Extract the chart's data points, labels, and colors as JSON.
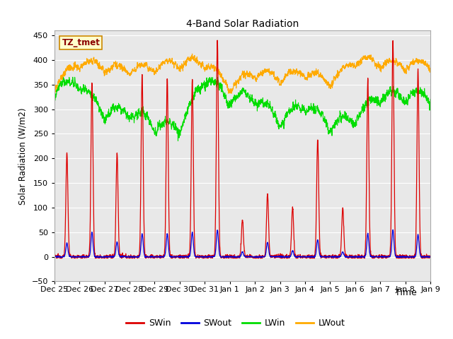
{
  "title": "4-Band Solar Radiation",
  "xlabel": "Time",
  "ylabel": "Solar Radiation (W/m2)",
  "ylim": [
    -50,
    460
  ],
  "yticks": [
    -50,
    0,
    50,
    100,
    150,
    200,
    250,
    300,
    350,
    400,
    450
  ],
  "tz_label": "TZ_tmet",
  "colors": {
    "SWin": "#dd0000",
    "SWout": "#0000dd",
    "LWin": "#00dd00",
    "LWout": "#ffaa00"
  },
  "background_color": "#e8e8e8",
  "fig_background": "#ffffff",
  "n_days": 15,
  "day_labels": [
    "Dec 25",
    "Dec 26",
    "Dec 27",
    "Dec 28",
    "Dec 29",
    "Dec 30",
    "Dec 31",
    "Jan 1",
    "Jan 2",
    "Jan 3",
    "Jan 4",
    "Jan 5",
    "Jan 6",
    "Jan 7",
    "Jan 8",
    "Jan 9"
  ],
  "SWin_daily_peaks": [
    210,
    355,
    210,
    370,
    365,
    360,
    442,
    75,
    130,
    100,
    240,
    100,
    360,
    440,
    380
  ],
  "SWout_daily_peaks": [
    28,
    50,
    30,
    47,
    47,
    50,
    55,
    10,
    30,
    12,
    35,
    10,
    47,
    55,
    45
  ],
  "LWin_daily": [
    325,
    340,
    275,
    280,
    252,
    248,
    350,
    305,
    310,
    262,
    295,
    252,
    268,
    312,
    312
  ],
  "LWout_daily": [
    338,
    383,
    373,
    368,
    373,
    383,
    383,
    333,
    363,
    353,
    363,
    343,
    388,
    383,
    378
  ]
}
